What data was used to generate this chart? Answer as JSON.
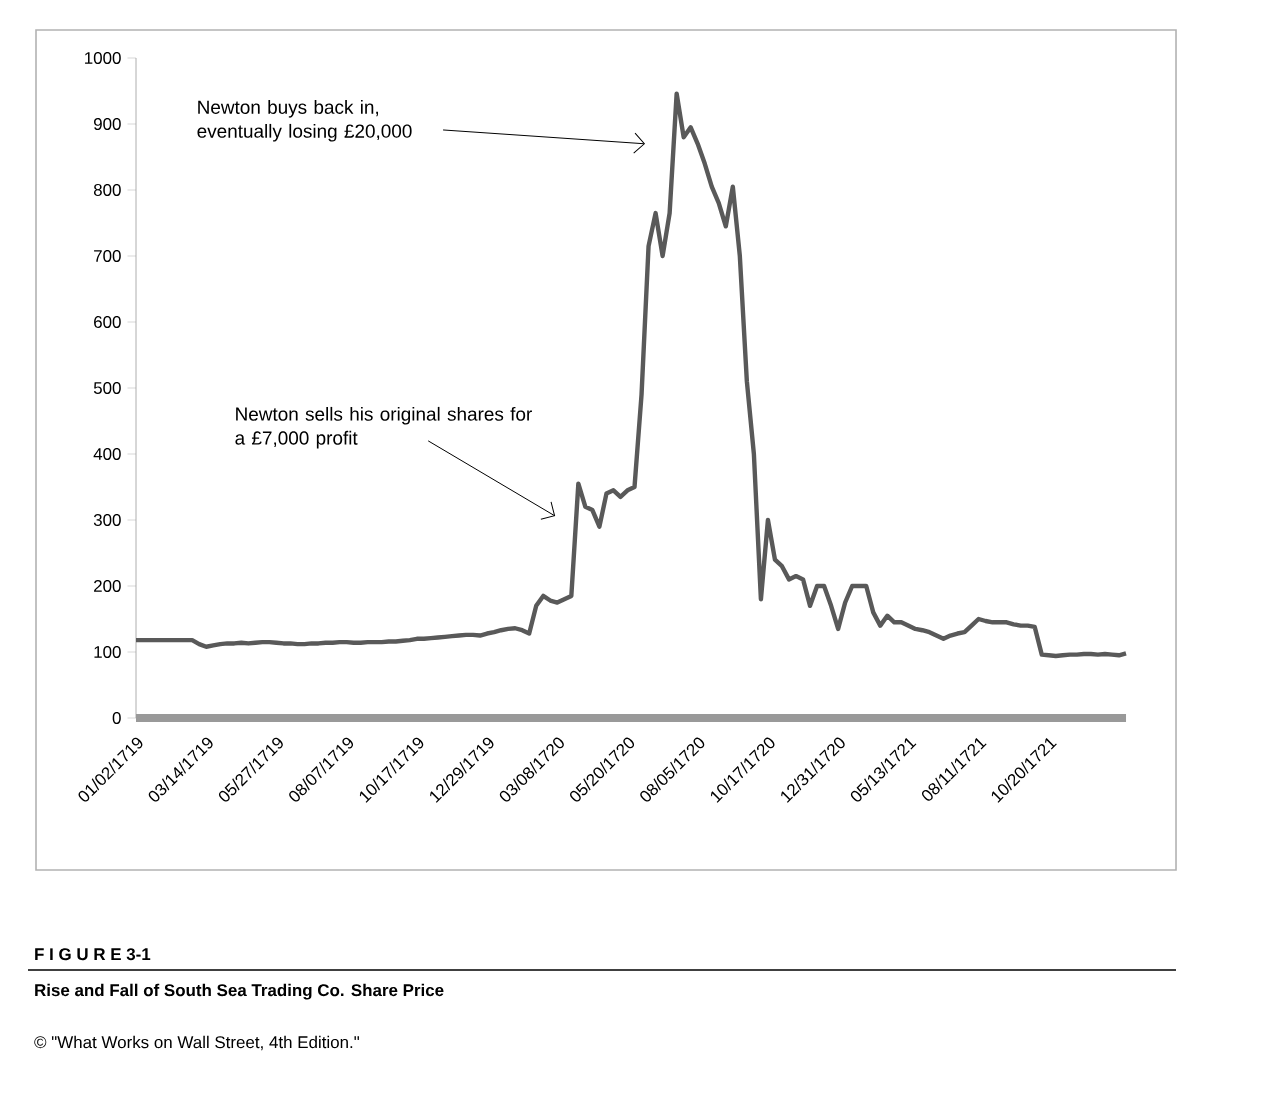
{
  "chart_data": {
    "type": "line",
    "title": "Rise and Fall of South Sea Trading Co. Share Price",
    "annotations": [
      "F I G U R E 3-1",
      "Newton buys back in, eventually losing £20,000",
      "Newton sells his original shares for a £7,000 profit",
      "© \"What Works on Wall Street, 4th Edition.\""
    ],
    "categories": [
      "01/02/1719",
      null,
      null,
      null,
      null,
      null,
      null,
      null,
      null,
      null,
      "03/14/1719",
      null,
      null,
      null,
      null,
      null,
      null,
      null,
      null,
      null,
      "05/27/1719",
      null,
      null,
      null,
      null,
      null,
      null,
      null,
      null,
      null,
      "08/07/1719",
      null,
      null,
      null,
      null,
      null,
      null,
      null,
      null,
      null,
      "10/17/1719",
      null,
      null,
      null,
      null,
      null,
      null,
      null,
      null,
      null,
      "12/29/1719",
      null,
      null,
      null,
      null,
      null,
      null,
      null,
      null,
      null,
      "03/08/1720",
      null,
      null,
      null,
      null,
      null,
      null,
      null,
      null,
      null,
      "05/20/1720",
      null,
      null,
      null,
      null,
      null,
      null,
      null,
      null,
      null,
      "08/05/1720",
      null,
      null,
      null,
      null,
      null,
      null,
      null,
      null,
      null,
      "10/17/1720",
      null,
      null,
      null,
      null,
      null,
      null,
      null,
      null,
      null,
      "12/31/1720",
      null,
      null,
      null,
      null,
      null,
      null,
      null,
      null,
      null,
      "05/13/1721",
      null,
      null,
      null,
      null,
      null,
      null,
      null,
      null,
      null,
      "08/11/1721",
      null,
      null,
      null,
      null,
      null,
      null,
      null,
      null,
      null,
      "10/20/1721",
      null,
      null,
      null,
      null,
      null,
      null,
      null,
      null,
      null,
      null,
      null
    ],
    "series": [
      {
        "color": "#595959",
        "values": [
          118,
          118,
          118,
          118,
          118,
          118,
          118,
          118,
          118,
          112,
          108,
          110,
          112,
          113,
          113,
          114,
          113,
          114,
          115,
          115,
          114,
          113,
          113,
          112,
          112,
          113,
          113,
          114,
          114,
          115,
          115,
          114,
          114,
          115,
          115,
          115,
          116,
          116,
          117,
          118,
          120,
          120,
          121,
          122,
          123,
          124,
          125,
          126,
          126,
          125,
          128,
          130,
          133,
          135,
          136,
          133,
          128,
          170,
          185,
          178,
          175,
          180,
          185,
          355,
          320,
          315,
          290,
          340,
          345,
          335,
          345,
          350,
          490,
          715,
          765,
          700,
          765,
          946,
          880,
          895,
          870,
          840,
          805,
          780,
          745,
          805,
          700,
          510,
          400,
          180,
          300,
          240,
          230,
          210,
          215,
          210,
          170,
          200,
          200,
          170,
          135,
          175,
          200,
          200,
          200,
          160,
          140,
          155,
          145,
          145,
          140,
          135,
          133,
          130,
          125,
          120,
          125,
          128,
          130,
          140,
          150,
          147,
          145,
          145,
          145,
          142,
          140,
          140,
          138,
          96,
          95,
          94,
          95,
          96,
          96,
          97,
          97,
          96,
          97,
          96,
          95,
          98
        ]
      }
    ],
    "ylim": [
      0,
      1000
    ],
    "yticks": [
      0,
      100,
      200,
      300,
      400,
      500,
      600,
      700,
      800,
      900,
      1000
    ],
    "marker": "none",
    "line_style": "solid",
    "grid": false,
    "legend": false
  }
}
